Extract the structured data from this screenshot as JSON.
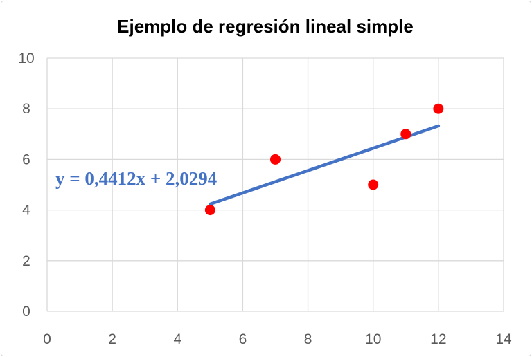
{
  "chart_data": {
    "type": "scatter",
    "title": "Ejemplo de regresión lineal simple",
    "xlabel": "",
    "ylabel": "",
    "xlim": [
      0,
      14
    ],
    "ylim": [
      0,
      10
    ],
    "x_ticks": [
      0,
      2,
      4,
      6,
      8,
      10,
      12,
      14
    ],
    "y_ticks": [
      0,
      2,
      4,
      6,
      8,
      10
    ],
    "x_tick_labels": [
      "0",
      "2",
      "4",
      "6",
      "8",
      "10",
      "12",
      "14"
    ],
    "y_tick_labels": [
      "0",
      "2",
      "4",
      "6",
      "8",
      "10"
    ],
    "grid": true,
    "series": [
      {
        "x": [
          5,
          7,
          10,
          11,
          12
        ],
        "y": [
          4,
          6,
          5,
          7,
          8
        ],
        "color": "#ff0000"
      }
    ],
    "trendline": {
      "slope": 0.4412,
      "intercept": 2.0294,
      "x_range": [
        5,
        12
      ],
      "color": "#4472c4",
      "equation_label": "y = 0,4412x + 2,0294"
    }
  }
}
